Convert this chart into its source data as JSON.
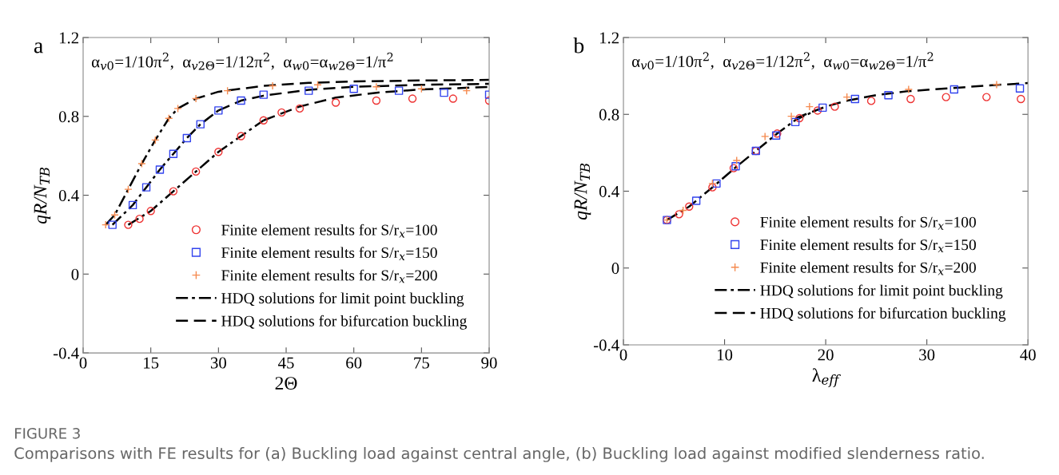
{
  "chart_data": [
    {
      "type": "scatter",
      "title": "a",
      "xlabel": "2Θ",
      "ylabel": "qR/N$_{TB}$",
      "xlim": [
        0,
        90
      ],
      "xticks": [
        0,
        15,
        30,
        45,
        60,
        75,
        90
      ],
      "ylim": [
        -0.4,
        1.2
      ],
      "yticks": [
        -0.4,
        0,
        0.4,
        0.8,
        1.2
      ],
      "grid": false,
      "legend": "bottom right",
      "annotations": [
        "α$_{v0}$=1/10π$^{2}$,  α$_{v2Θ}$=1/12π$^{2}$,  α$_{w0}$=α$_{w2Θ}$=1/π$^{2}$",
        "FIGURE 3",
        "Comparisons with FE results for (a) Buckling load against central angle, (b) Buckling load against modified slenderness ratio."
      ],
      "series": [
        {
          "name": "Finite element results for S/r$_{x}$=100",
          "marker": "circle",
          "color": "#ee3333",
          "x": [
            10,
            12.5,
            15,
            20,
            25,
            30,
            35,
            40,
            44,
            48,
            56,
            65,
            73,
            82,
            90
          ],
          "values": [
            0.25,
            0.28,
            0.32,
            0.42,
            0.52,
            0.62,
            0.7,
            0.78,
            0.82,
            0.84,
            0.87,
            0.88,
            0.89,
            0.89,
            0.88
          ]
        },
        {
          "name": "Finite element results for S/r$_{x}$=150",
          "marker": "square",
          "color": "#3344ee",
          "x": [
            6.5,
            11,
            14,
            17,
            20,
            23,
            26,
            30,
            35,
            40,
            50,
            60,
            70,
            80,
            90
          ],
          "values": [
            0.25,
            0.35,
            0.44,
            0.53,
            0.61,
            0.69,
            0.76,
            0.83,
            0.88,
            0.91,
            0.93,
            0.94,
            0.93,
            0.92,
            0.91
          ]
        },
        {
          "name": "Finite element results for S/r$_{x}$=200",
          "marker": "cross",
          "color": "#f58a4f",
          "x": [
            5,
            7,
            10,
            13,
            16,
            19,
            21,
            25,
            32,
            42,
            52,
            65,
            75,
            85
          ],
          "values": [
            0.25,
            0.3,
            0.43,
            0.56,
            0.68,
            0.79,
            0.84,
            0.89,
            0.93,
            0.955,
            0.96,
            0.95,
            0.94,
            0.93
          ]
        },
        {
          "name": "HDQ solutions for limit point buckling",
          "type": "line",
          "line_style": "dashdot",
          "color": "#000000",
          "x": [
            10,
            15,
            20,
            25,
            30,
            35,
            40
          ],
          "values": [
            0.25,
            0.32,
            0.42,
            0.52,
            0.62,
            0.7,
            0.78
          ]
        },
        {
          "type": "line",
          "line_style": "dashdot",
          "color": "#000000",
          "x": [
            6.5,
            11,
            14,
            17,
            20,
            23,
            26,
            30
          ],
          "values": [
            0.25,
            0.35,
            0.44,
            0.53,
            0.61,
            0.69,
            0.76,
            0.83
          ]
        },
        {
          "type": "line",
          "line_style": "dashdot",
          "color": "#000000",
          "x": [
            5,
            7,
            10,
            13,
            16,
            19,
            21
          ],
          "values": [
            0.25,
            0.3,
            0.43,
            0.56,
            0.68,
            0.79,
            0.84
          ]
        },
        {
          "name": "HDQ solutions for bifurcation buckling",
          "type": "line",
          "line_style": "dashed",
          "color": "#000000",
          "x": [
            40,
            48,
            56,
            65,
            75,
            90
          ],
          "values": [
            0.78,
            0.85,
            0.895,
            0.92,
            0.937,
            0.949
          ]
        },
        {
          "type": "line",
          "line_style": "dashed",
          "color": "#000000",
          "x": [
            30,
            35,
            40,
            50,
            60,
            75,
            90
          ],
          "values": [
            0.83,
            0.88,
            0.905,
            0.935,
            0.95,
            0.96,
            0.965
          ]
        },
        {
          "type": "line",
          "line_style": "dashed",
          "color": "#000000",
          "x": [
            21,
            25,
            30,
            40,
            50,
            60,
            75,
            90
          ],
          "values": [
            0.84,
            0.89,
            0.925,
            0.955,
            0.97,
            0.977,
            0.982,
            0.985
          ]
        }
      ]
    },
    {
      "type": "scatter",
      "title": "b",
      "xlabel": "λ$_{eff}$",
      "ylabel": "qR/N$_{TB}$",
      "xlim": [
        0,
        40
      ],
      "xticks": [
        0,
        10,
        20,
        30,
        40
      ],
      "ylim": [
        -0.4,
        1.2
      ],
      "yticks": [
        -0.4,
        0,
        0.4,
        0.8,
        1.2
      ],
      "grid": false,
      "legend": "bottom right",
      "annotations": [
        "α$_{v0}$=1/10π$^{2}$,  α$_{v2Θ}$=1/12π$^{2}$,  α$_{w0}$=α$_{w2Θ}$=1/π$^{2}$"
      ],
      "series": [
        {
          "name": "Finite element results for S/r$_{x}$=100",
          "marker": "circle",
          "color": "#ee3333",
          "x": [
            4.3,
            5.5,
            6.5,
            8.8,
            10.9,
            13.1,
            15.2,
            17.4,
            19.2,
            20.9,
            24.5,
            28.4,
            31.9,
            35.9,
            39.3
          ],
          "values": [
            0.25,
            0.28,
            0.32,
            0.42,
            0.52,
            0.61,
            0.7,
            0.78,
            0.82,
            0.84,
            0.87,
            0.88,
            0.89,
            0.89,
            0.88
          ]
        },
        {
          "name": "Finite element results for S/r$_{x}$=150",
          "marker": "square",
          "color": "#3344ee",
          "x": [
            4.3,
            7.2,
            9.2,
            11.1,
            13.1,
            15.1,
            17,
            19.7,
            22.9,
            26.2,
            32.7,
            39.2
          ],
          "values": [
            0.25,
            0.35,
            0.44,
            0.53,
            0.61,
            0.69,
            0.76,
            0.835,
            0.88,
            0.9,
            0.93,
            0.935
          ]
        },
        {
          "name": "Finite element results for S/r$_{x}$=200",
          "marker": "cross",
          "color": "#f58a4f",
          "x": [
            4.3,
            5.9,
            8.8,
            11.2,
            14,
            16.6,
            18.4,
            22.1,
            28.2,
            36.9
          ],
          "values": [
            0.25,
            0.3,
            0.44,
            0.56,
            0.685,
            0.79,
            0.84,
            0.89,
            0.93,
            0.955
          ]
        },
        {
          "name": "HDQ solutions for limit point buckling",
          "type": "line",
          "line_style": "dashdot",
          "color": "#000000",
          "x": [
            4.3,
            6.5,
            8.8,
            11,
            13.1,
            15.2,
            17,
            19
          ],
          "values": [
            0.25,
            0.32,
            0.42,
            0.52,
            0.61,
            0.7,
            0.77,
            0.82
          ]
        },
        {
          "name": "HDQ solutions for bifurcation buckling",
          "type": "line",
          "line_style": "dashed",
          "color": "#000000",
          "x": [
            17,
            20,
            22,
            25,
            28,
            32,
            36,
            40
          ],
          "values": [
            0.78,
            0.84,
            0.87,
            0.9,
            0.92,
            0.935,
            0.95,
            0.963
          ]
        }
      ]
    }
  ]
}
